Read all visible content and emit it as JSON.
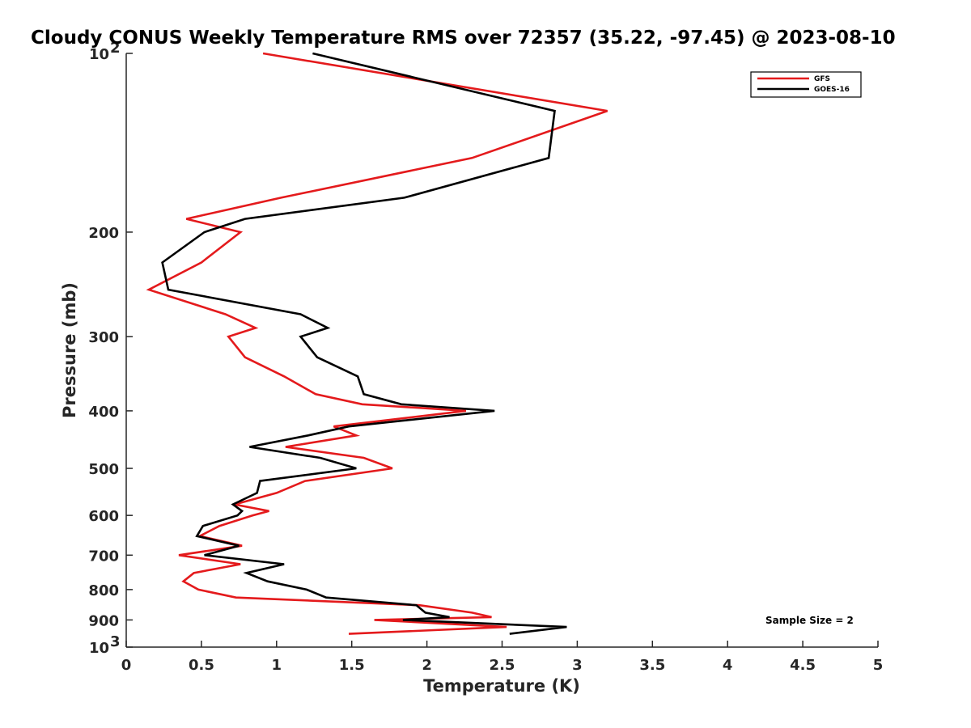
{
  "chart_data": {
    "type": "line",
    "title": "Cloudy CONUS Weekly Temperature RMS over 72357 (35.22, -97.45) @ 2023-08-10",
    "xlabel": "Temperature (K)",
    "ylabel": "Pressure (mb)",
    "xlim": [
      0,
      5
    ],
    "ylim": [
      100,
      1000
    ],
    "yscale": "log",
    "y_reversed": true,
    "grid": false,
    "legend_position": "top-right",
    "x_ticks": [
      {
        "value": 0,
        "label": "0"
      },
      {
        "value": 0.5,
        "label": "0.5"
      },
      {
        "value": 1,
        "label": "1"
      },
      {
        "value": 1.5,
        "label": "1.5"
      },
      {
        "value": 2,
        "label": "2"
      },
      {
        "value": 2.5,
        "label": "2.5"
      },
      {
        "value": 3,
        "label": "3"
      },
      {
        "value": 3.5,
        "label": "3.5"
      },
      {
        "value": 4,
        "label": "4"
      },
      {
        "value": 4.5,
        "label": "4.5"
      },
      {
        "value": 5,
        "label": "5"
      }
    ],
    "y_ticks": [
      {
        "value": 100,
        "base": "10",
        "exp": "2"
      },
      {
        "value": 200,
        "label": "200"
      },
      {
        "value": 300,
        "label": "300"
      },
      {
        "value": 400,
        "label": "400"
      },
      {
        "value": 500,
        "label": "500"
      },
      {
        "value": 600,
        "label": "600"
      },
      {
        "value": 700,
        "label": "700"
      },
      {
        "value": 800,
        "label": "800"
      },
      {
        "value": 900,
        "label": "900"
      },
      {
        "value": 1000,
        "base": "10",
        "exp": "3"
      }
    ],
    "series": [
      {
        "name": "GFS",
        "color": "#e41a1c",
        "points": [
          [
            0.91,
            100
          ],
          [
            3.2,
            125
          ],
          [
            2.3,
            150
          ],
          [
            1.03,
            175
          ],
          [
            0.4,
            190
          ],
          [
            0.76,
            200
          ],
          [
            0.5,
            225
          ],
          [
            0.15,
            250
          ],
          [
            0.66,
            275
          ],
          [
            0.86,
            290
          ],
          [
            0.68,
            300
          ],
          [
            0.79,
            325
          ],
          [
            1.05,
            350
          ],
          [
            1.26,
            375
          ],
          [
            1.57,
            390
          ],
          [
            2.26,
            400
          ],
          [
            1.38,
            425
          ],
          [
            1.53,
            440
          ],
          [
            1.06,
            460
          ],
          [
            1.58,
            480
          ],
          [
            1.77,
            500
          ],
          [
            1.19,
            525
          ],
          [
            1.0,
            550
          ],
          [
            0.72,
            575
          ],
          [
            0.95,
            590
          ],
          [
            0.84,
            600
          ],
          [
            0.62,
            625
          ],
          [
            0.49,
            650
          ],
          [
            0.77,
            675
          ],
          [
            0.35,
            700
          ],
          [
            0.76,
            725
          ],
          [
            0.45,
            750
          ],
          [
            0.38,
            775
          ],
          [
            0.48,
            800
          ],
          [
            0.73,
            825
          ],
          [
            1.95,
            850
          ],
          [
            2.3,
            875
          ],
          [
            2.43,
            890
          ],
          [
            1.65,
            900
          ],
          [
            2.53,
            925
          ],
          [
            1.48,
            950
          ]
        ]
      },
      {
        "name": "GOES-16",
        "color": "#000000",
        "points": [
          [
            1.24,
            100
          ],
          [
            2.85,
            125
          ],
          [
            2.81,
            150
          ],
          [
            1.85,
            175
          ],
          [
            0.79,
            190
          ],
          [
            0.52,
            200
          ],
          [
            0.24,
            225
          ],
          [
            0.28,
            250
          ],
          [
            1.16,
            275
          ],
          [
            1.34,
            290
          ],
          [
            1.16,
            300
          ],
          [
            1.27,
            325
          ],
          [
            1.54,
            350
          ],
          [
            1.58,
            375
          ],
          [
            1.83,
            390
          ],
          [
            2.45,
            400
          ],
          [
            1.48,
            425
          ],
          [
            1.21,
            440
          ],
          [
            0.82,
            460
          ],
          [
            1.29,
            480
          ],
          [
            1.53,
            500
          ],
          [
            0.89,
            525
          ],
          [
            0.87,
            550
          ],
          [
            0.71,
            575
          ],
          [
            0.77,
            590
          ],
          [
            0.74,
            600
          ],
          [
            0.51,
            625
          ],
          [
            0.47,
            650
          ],
          [
            0.75,
            675
          ],
          [
            0.52,
            700
          ],
          [
            1.05,
            725
          ],
          [
            0.8,
            750
          ],
          [
            0.94,
            775
          ],
          [
            1.2,
            800
          ],
          [
            1.33,
            825
          ],
          [
            1.93,
            850
          ],
          [
            1.99,
            875
          ],
          [
            2.15,
            890
          ],
          [
            1.84,
            900
          ],
          [
            2.93,
            925
          ],
          [
            2.55,
            950
          ]
        ]
      }
    ],
    "annotation": "Sample Size = 2"
  }
}
